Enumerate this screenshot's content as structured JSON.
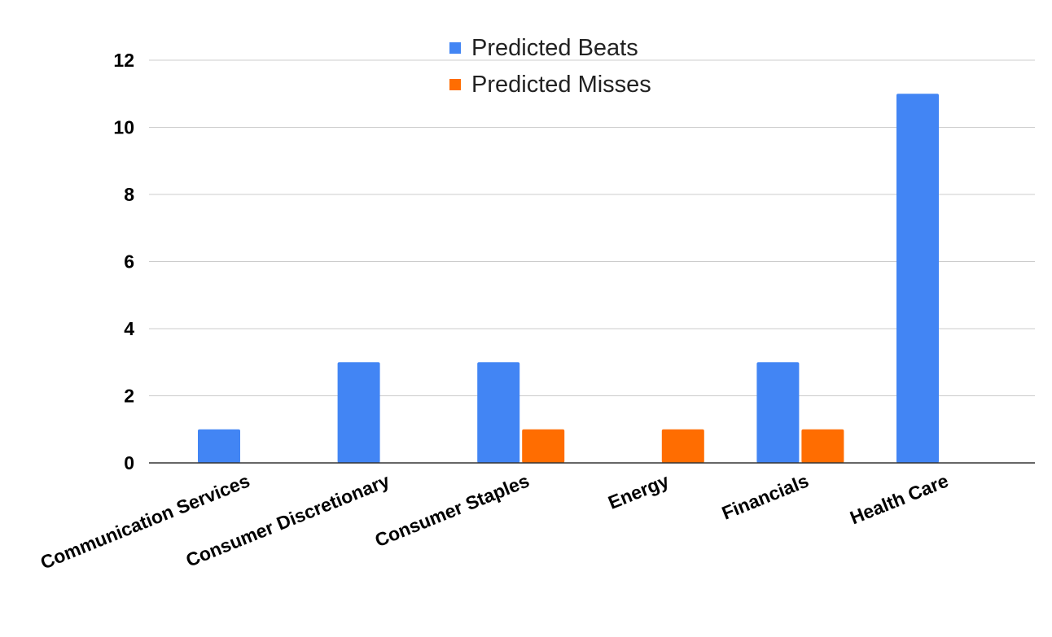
{
  "chart_data": {
    "type": "bar",
    "categories": [
      "Communication Services",
      "Consumer Discretionary",
      "Consumer Staples",
      "Energy",
      "Financials",
      "Health Care"
    ],
    "series": [
      {
        "name": "Predicted Beats",
        "values": [
          1,
          3,
          3,
          0,
          3,
          11
        ],
        "color": "#4285f4"
      },
      {
        "name": "Predicted Misses",
        "values": [
          0,
          0,
          1,
          1,
          1,
          0
        ],
        "color": "#ff6d01"
      }
    ],
    "y_ticks": [
      "0",
      "2",
      "4",
      "6",
      "8",
      "10",
      "12"
    ],
    "ylim": [
      0,
      12
    ],
    "title": "",
    "xlabel": "",
    "ylabel": "",
    "grid": true,
    "legend_position": "top-center"
  }
}
